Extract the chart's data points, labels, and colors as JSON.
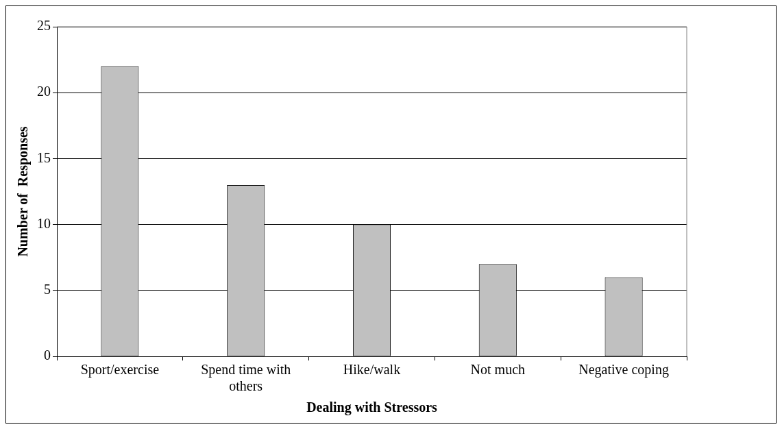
{
  "chart_data": {
    "type": "bar",
    "xlabel": "Dealing with Stressors",
    "ylabel": "Number of  Responses",
    "categories": [
      "Sport/exercise",
      "Spend time with others",
      "Hike/walk",
      "Not much",
      "Negative coping"
    ],
    "values": [
      22,
      13,
      10,
      7,
      6
    ],
    "color": "#c0c0c0",
    "ylim": [
      0,
      25
    ],
    "yticks": [
      0,
      5,
      10,
      15,
      20,
      25
    ],
    "grid": "y",
    "legend": false
  }
}
